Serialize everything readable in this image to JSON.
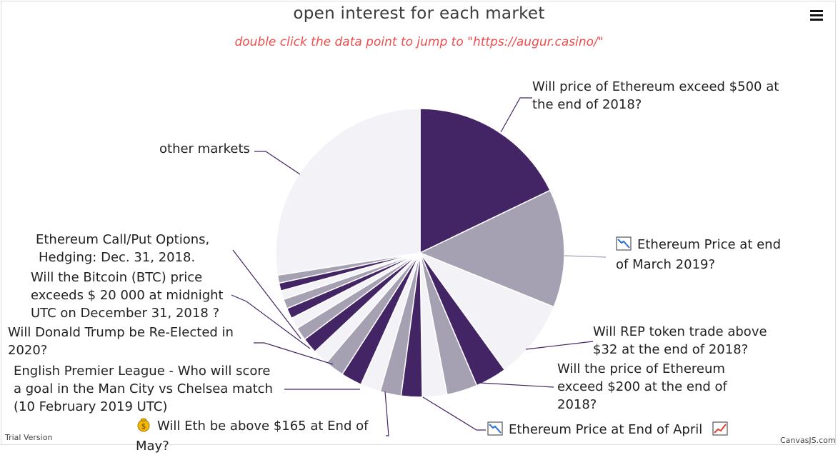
{
  "chart": {
    "title": "open interest for each market",
    "subtitle": "double click the data point to jump to \"https://augur.casino/\"",
    "trial_text": "Trial Version",
    "credit_text": "CanvasJS.com"
  },
  "icons": {
    "menu": "hamburger-menu-icon",
    "chart_down": "chart-decreasing-icon",
    "chart_up": "chart-increasing-icon",
    "money_bag": "money-bag-icon"
  },
  "colors": {
    "dark_purple": "#432465",
    "gray_purple": "#a5a1b3",
    "light": "#f3f3f7",
    "title": "#3a3a3a",
    "subtitle": "#ef4d4d"
  },
  "labels": {
    "l0": [
      "Will price of Ethereum exceed $500 at",
      "the end of 2018?"
    ],
    "l1": [
      "Ethereum Price at end",
      "of March 2019?"
    ],
    "l2": [
      "Will REP token trade above",
      "$32 at the end of 2018?"
    ],
    "l3": [
      "Will the price of Ethereum",
      "exceed $200 at the end of",
      "2018?"
    ],
    "l4": [
      "Ethereum Price at End of April"
    ],
    "l5": [
      "Will Eth be above $165 at End of",
      "May?"
    ],
    "l6": [
      "English Premier League - Who will score",
      "a goal in the Man City vs Chelsea match",
      "(10 February 2019 UTC)"
    ],
    "l7": [
      "Will Donald Trump be Re-Elected in",
      "2020?"
    ],
    "l8": [
      "Will the Bitcoin (BTC) price",
      "exceeds $ 20 000 at midnight",
      "UTC on December 31, 2018 ?"
    ],
    "l9": [
      "Ethereum Call/Put Options,",
      "Hedging: Dec. 31, 2018."
    ],
    "l10": [
      "other markets"
    ]
  },
  "chart_data": {
    "type": "pie",
    "title": "open interest for each market",
    "subtitle": "double click the data point to jump to \"https://augur.casino/\"",
    "start_angle_deg": -90,
    "slices": [
      {
        "label": "Will price of Ethereum exceed $500 at the end of 2018?",
        "value": 18.2,
        "color": "#432465"
      },
      {
        "label": "Ethereum Price at end of March 2019?",
        "value": 13.5,
        "color": "#a5a1b3"
      },
      {
        "label": "Will REP token trade above $32 at the end of 2018?",
        "value": 9.1,
        "color": "#f3f3f7"
      },
      {
        "label": "Will the price of Ethereum exceed $200 at the end of 2018?",
        "value": 3.6,
        "color": "#432465"
      },
      {
        "label": "",
        "value": 3.5,
        "color": "#a5a1b3"
      },
      {
        "label": "Ethereum Price at End of April",
        "value": 2.8,
        "color": "#f3f3f7"
      },
      {
        "label": "",
        "value": 2.4,
        "color": "#432465"
      },
      {
        "label": "Will Eth be above $165 at End of May?",
        "value": 2.4,
        "color": "#a5a1b3"
      },
      {
        "label": "",
        "value": 2.3,
        "color": "#f3f3f7"
      },
      {
        "label": "",
        "value": 2.4,
        "color": "#432465"
      },
      {
        "label": "English Premier League - Who will score a goal in the Man City vs Chelsea match (10 February 2019 UTC)",
        "value": 2.2,
        "color": "#a5a1b3"
      },
      {
        "label": "",
        "value": 1.8,
        "color": "#f3f3f7"
      },
      {
        "label": "",
        "value": 1.8,
        "color": "#432465"
      },
      {
        "label": "Will Donald Trump be Re-Elected in 2020?",
        "value": 1.5,
        "color": "#a5a1b3"
      },
      {
        "label": "",
        "value": 1.3,
        "color": "#f3f3f7"
      },
      {
        "label": "",
        "value": 1.2,
        "color": "#432465"
      },
      {
        "label": "Will the Bitcoin (BTC) price exceeds $ 20 000 at midnight UTC on December 31, 2018 ?",
        "value": 1.1,
        "color": "#a5a1b3"
      },
      {
        "label": "",
        "value": 1.0,
        "color": "#f3f3f7"
      },
      {
        "label": "Ethereum Call/Put Options, Hedging: Dec. 31, 2018.",
        "value": 0.9,
        "color": "#432465"
      },
      {
        "label": "",
        "value": 0.9,
        "color": "#a5a1b3"
      },
      {
        "label": "other markets",
        "value": 28.0,
        "color": "#f3f3f7"
      }
    ]
  }
}
